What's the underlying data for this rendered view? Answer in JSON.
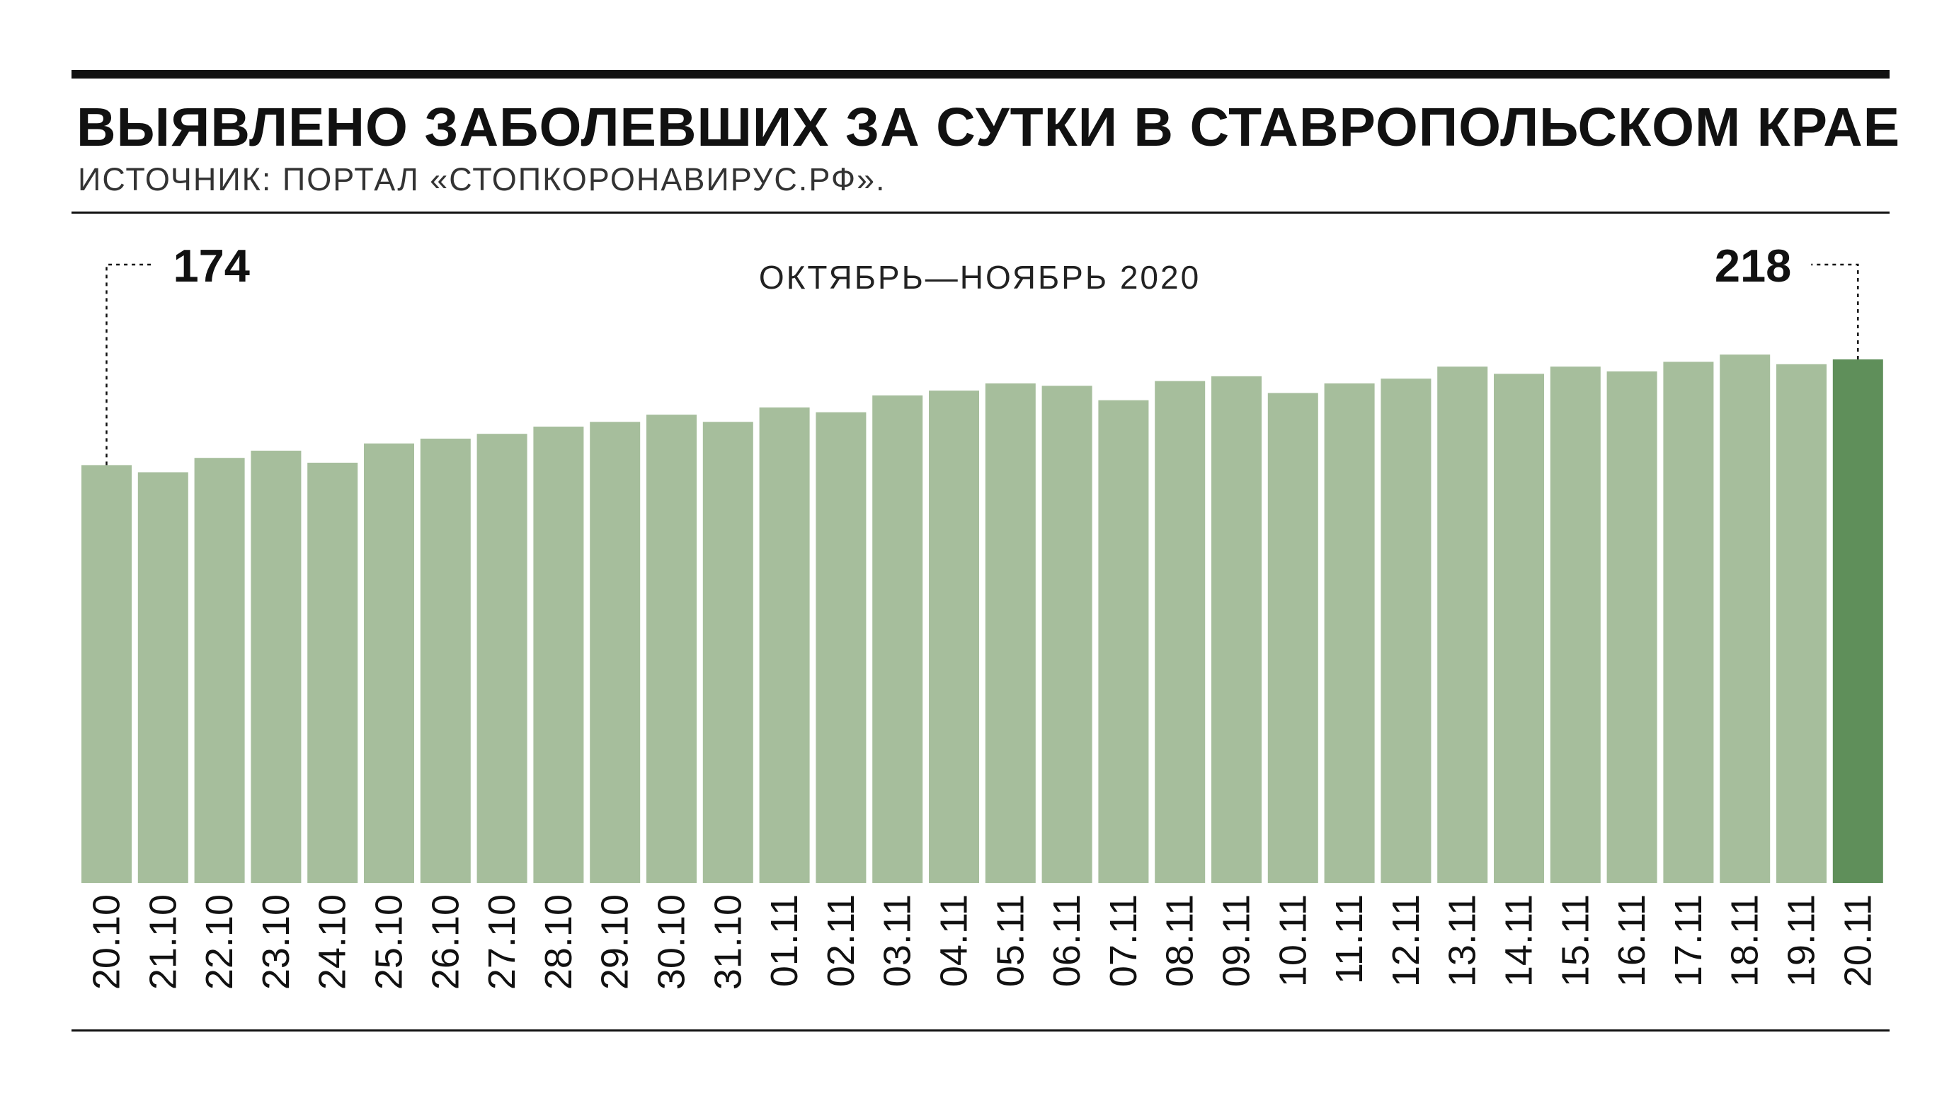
{
  "header": {
    "title_regular": "ВЫЯВЛЕНО ЗАБОЛЕВШИХ ЗА СУТКИ В ",
    "title_bold": "СТАВРОПОЛЬСКОМ КРАЕ",
    "subtitle": "ИСТОЧНИК: ПОРТАЛ «СТОПКОРОНАВИРУС.РФ»."
  },
  "colors": {
    "bar": "#a6be9c",
    "bar_highlight": "#5f8f5a",
    "ink": "#111111"
  },
  "chart_data": {
    "type": "bar",
    "subtitle": "ОКТЯБРЬ—НОЯБРЬ 2020",
    "categories": [
      "20.10",
      "21.10",
      "22.10",
      "23.10",
      "24.10",
      "25.10",
      "26.10",
      "27.10",
      "28.10",
      "29.10",
      "30.10",
      "31.10",
      "01.11",
      "02.11",
      "03.11",
      "04.11",
      "05.11",
      "06.11",
      "07.11",
      "08.11",
      "09.11",
      "10.11",
      "11.11",
      "12.11",
      "13.11",
      "14.11",
      "15.11",
      "16.11",
      "17.11",
      "18.11",
      "19.11",
      "20.11"
    ],
    "values": [
      174,
      171,
      177,
      180,
      175,
      183,
      185,
      187,
      190,
      192,
      195,
      192,
      198,
      196,
      203,
      205,
      208,
      207,
      201,
      209,
      211,
      204,
      208,
      210,
      215,
      212,
      215,
      213,
      217,
      220,
      216,
      218
    ],
    "annotations": [
      {
        "category": "20.10",
        "label": "174"
      },
      {
        "category": "20.11",
        "label": "218"
      }
    ],
    "highlight": "20.11",
    "ylim": [
      0,
      218
    ],
    "grid": false,
    "legend": "none"
  }
}
